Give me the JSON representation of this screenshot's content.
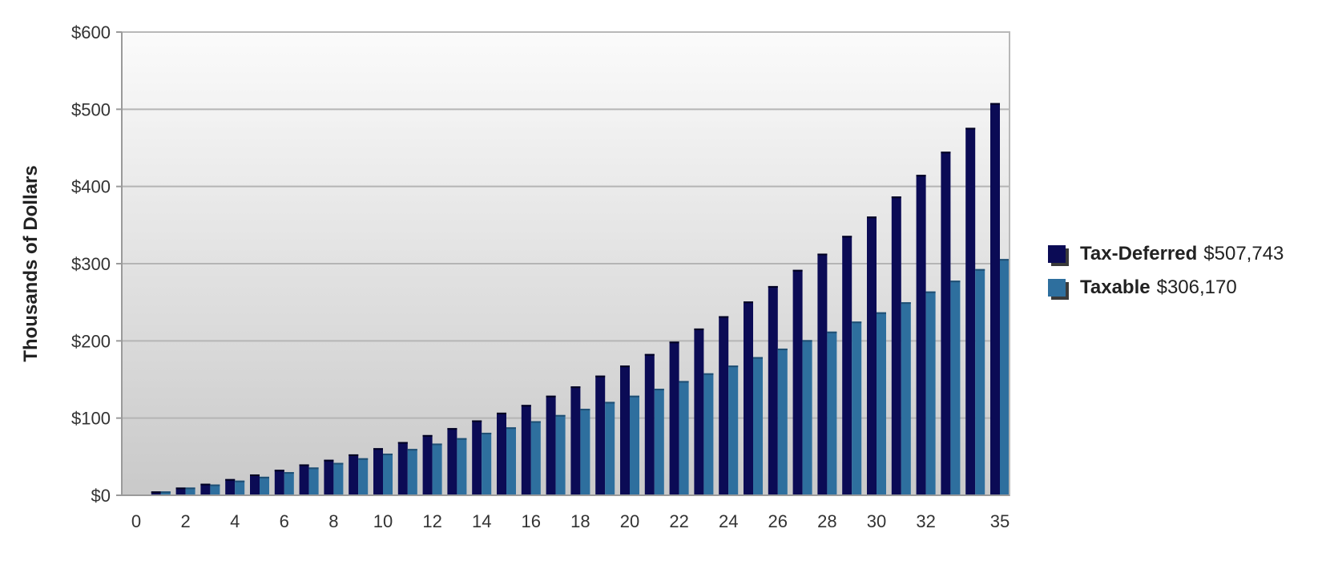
{
  "chart_data": {
    "type": "bar",
    "ylabel": "Thousands of Dollars",
    "ylim": [
      0,
      600
    ],
    "yticks": [
      {
        "value": 0,
        "label": "$0"
      },
      {
        "value": 100,
        "label": "$100"
      },
      {
        "value": 200,
        "label": "$200"
      },
      {
        "value": 300,
        "label": "$300"
      },
      {
        "value": 400,
        "label": "$400"
      },
      {
        "value": 500,
        "label": "$500"
      },
      {
        "value": 600,
        "label": "$600"
      }
    ],
    "xlim": [
      0,
      35
    ],
    "xticks": [
      {
        "value": 0,
        "label": "0"
      },
      {
        "value": 2,
        "label": "2"
      },
      {
        "value": 4,
        "label": "4"
      },
      {
        "value": 6,
        "label": "6"
      },
      {
        "value": 8,
        "label": "8"
      },
      {
        "value": 10,
        "label": "10"
      },
      {
        "value": 12,
        "label": "12"
      },
      {
        "value": 14,
        "label": "14"
      },
      {
        "value": 16,
        "label": "16"
      },
      {
        "value": 18,
        "label": "18"
      },
      {
        "value": 20,
        "label": "20"
      },
      {
        "value": 22,
        "label": "22"
      },
      {
        "value": 24,
        "label": "24"
      },
      {
        "value": 26,
        "label": "26"
      },
      {
        "value": 28,
        "label": "28"
      },
      {
        "value": 30,
        "label": "30"
      },
      {
        "value": 32,
        "label": "32"
      },
      {
        "value": 35,
        "label": "35"
      }
    ],
    "x": [
      1,
      2,
      3,
      4,
      5,
      6,
      7,
      8,
      9,
      10,
      11,
      12,
      13,
      14,
      15,
      16,
      17,
      18,
      19,
      20,
      21,
      22,
      23,
      24,
      25,
      26,
      27,
      28,
      29,
      30,
      31,
      32,
      33,
      34,
      35
    ],
    "grid": true,
    "legend_position": "right",
    "series": [
      {
        "name": "Tax-Deferred",
        "total_label": "$507,743",
        "color": "#0b0b55",
        "values": [
          5,
          10,
          15,
          21,
          27,
          33,
          40,
          46,
          53,
          61,
          69,
          78,
          87,
          97,
          107,
          117,
          129,
          141,
          155,
          168,
          183,
          199,
          216,
          232,
          251,
          271,
          292,
          313,
          336,
          361,
          387,
          415,
          445,
          476,
          508
        ]
      },
      {
        "name": "Taxable",
        "total_label": "$306,170",
        "color": "#2e6f9e",
        "values": [
          5,
          10,
          14,
          19,
          24,
          30,
          36,
          42,
          48,
          54,
          60,
          67,
          74,
          81,
          88,
          96,
          104,
          112,
          121,
          129,
          138,
          148,
          158,
          168,
          179,
          190,
          201,
          212,
          225,
          237,
          250,
          264,
          278,
          293,
          306
        ]
      }
    ]
  }
}
